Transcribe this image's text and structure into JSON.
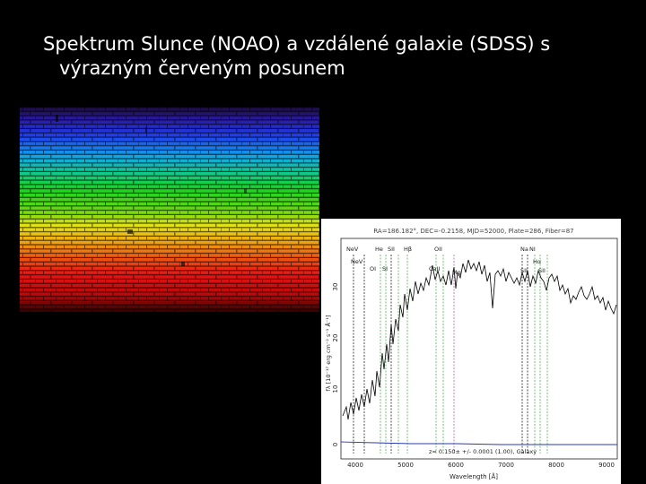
{
  "slide": {
    "title_line1": "Spektrum Slunce (NOAO) a vzdálené galaxie (SDSS) s",
    "title_line2": "výrazným červeným posunem"
  },
  "galaxy_plot": {
    "header": "RA=186.182°, DEC=-0.2158, MJD=52000, Plate=286, Fiber=87",
    "line_labels": [
      "NeV",
      "NeV",
      "OI",
      "He",
      "SII",
      "SI",
      "Hβ",
      "OII",
      "CaII",
      "Mg",
      "Na",
      "NI",
      "Hα",
      "SII",
      "SII"
    ],
    "xlabel": "Wavelength [Å]",
    "ylabel": "fλ [10⁻¹⁷ erg cm⁻² s⁻¹ Å⁻¹]",
    "xticks": [
      "4000",
      "5000",
      "6000",
      "7000",
      "8000",
      "9000"
    ],
    "yticks": [
      "0",
      "10",
      "20",
      "30"
    ],
    "annotation": "z= 0.150± +/- 0.0001 (1.00), Galaxy",
    "colors": {
      "spectrum": "#000000",
      "error": "#2b3bb0",
      "marker_green": "#3aa63a",
      "marker_black": "#000000"
    }
  }
}
